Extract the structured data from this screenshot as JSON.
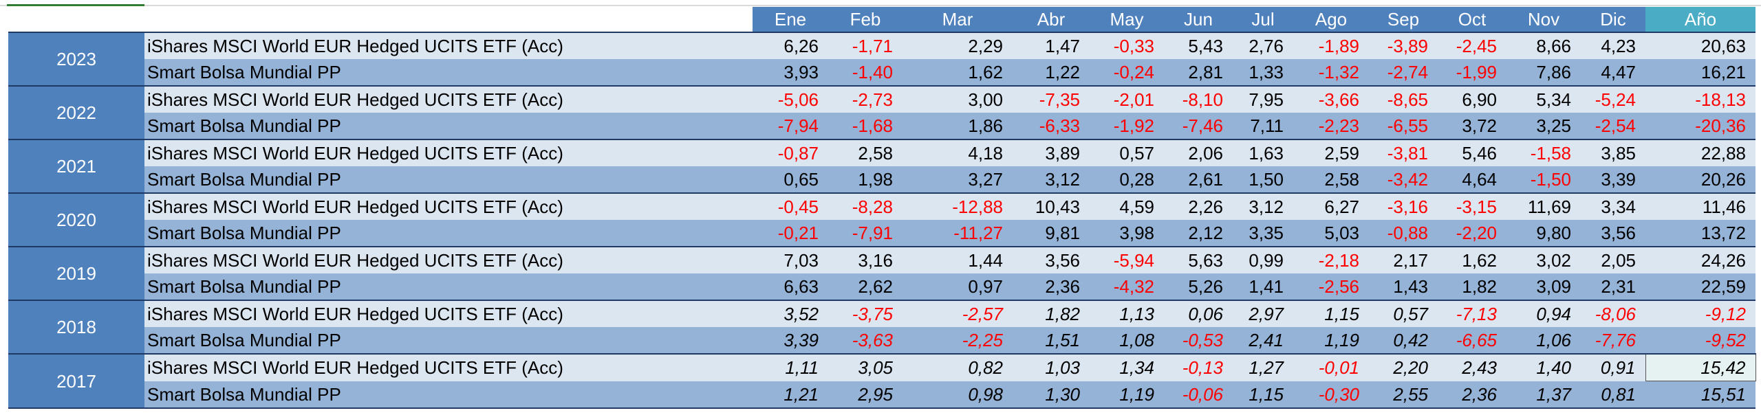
{
  "header": {
    "months": [
      "Ene",
      "Feb",
      "Mar",
      "Abr",
      "May",
      "Jun",
      "Jul",
      "Ago",
      "Sep",
      "Oct",
      "Nov",
      "Dic"
    ],
    "total": "Año"
  },
  "groups": [
    {
      "year": "2023",
      "italic": false,
      "rows": [
        {
          "fund": "iShares MSCI World EUR Hedged UCITS ETF (Acc)",
          "values": [
            "6,26",
            "-1,71",
            "2,29",
            "1,47",
            "-0,33",
            "5,43",
            "2,76",
            "-1,89",
            "-3,89",
            "-2,45",
            "8,66",
            "4,23",
            "20,63"
          ]
        },
        {
          "fund": "Smart Bolsa Mundial  PP",
          "values": [
            "3,93",
            "-1,40",
            "1,62",
            "1,22",
            "-0,24",
            "2,81",
            "1,33",
            "-1,32",
            "-2,74",
            "-1,99",
            "7,86",
            "4,47",
            "16,21"
          ]
        }
      ]
    },
    {
      "year": "2022",
      "italic": false,
      "rows": [
        {
          "fund": "iShares MSCI World EUR Hedged UCITS ETF (Acc)",
          "values": [
            "-5,06",
            "-2,73",
            "3,00",
            "-7,35",
            "-2,01",
            "-8,10",
            "7,95",
            "-3,66",
            "-8,65",
            "6,90",
            "5,34",
            "-5,24",
            "-18,13"
          ]
        },
        {
          "fund": "Smart Bolsa Mundial  PP",
          "values": [
            "-7,94",
            "-1,68",
            "1,86",
            "-6,33",
            "-1,92",
            "-7,46",
            "7,11",
            "-2,23",
            "-6,55",
            "3,72",
            "3,25",
            "-2,54",
            "-20,36"
          ]
        }
      ]
    },
    {
      "year": "2021",
      "italic": false,
      "rows": [
        {
          "fund": "iShares MSCI World EUR Hedged UCITS ETF (Acc)",
          "values": [
            "-0,87",
            "2,58",
            "4,18",
            "3,89",
            "0,57",
            "2,06",
            "1,63",
            "2,59",
            "-3,81",
            "5,46",
            "-1,58",
            "3,85",
            "22,88"
          ]
        },
        {
          "fund": "Smart Bolsa Mundial  PP",
          "values": [
            "0,65",
            "1,98",
            "3,27",
            "3,12",
            "0,28",
            "2,61",
            "1,50",
            "2,58",
            "-3,42",
            "4,64",
            "-1,50",
            "3,39",
            "20,26"
          ]
        }
      ]
    },
    {
      "year": "2020",
      "italic": false,
      "rows": [
        {
          "fund": "iShares MSCI World EUR Hedged UCITS ETF (Acc)",
          "values": [
            "-0,45",
            "-8,28",
            "-12,88",
            "10,43",
            "4,59",
            "2,26",
            "3,12",
            "6,27",
            "-3,16",
            "-3,15",
            "11,69",
            "3,34",
            "11,46"
          ]
        },
        {
          "fund": "Smart Bolsa Mundial  PP",
          "values": [
            "-0,21",
            "-7,91",
            "-11,27",
            "9,81",
            "3,98",
            "2,12",
            "3,35",
            "5,03",
            "-0,88",
            "-2,20",
            "9,80",
            "3,56",
            "13,72"
          ]
        }
      ]
    },
    {
      "year": "2019",
      "italic": false,
      "rows": [
        {
          "fund": "iShares MSCI World EUR Hedged UCITS ETF (Acc)",
          "values": [
            "7,03",
            "3,16",
            "1,44",
            "3,56",
            "-5,94",
            "5,63",
            "0,99",
            "-2,18",
            "2,17",
            "1,62",
            "3,02",
            "2,05",
            "24,26"
          ]
        },
        {
          "fund": "Smart Bolsa Mundial  PP",
          "values": [
            "6,63",
            "2,62",
            "0,97",
            "2,36",
            "-4,32",
            "5,26",
            "1,41",
            "-2,56",
            "1,43",
            "1,82",
            "3,09",
            "2,31",
            "22,59"
          ]
        }
      ]
    },
    {
      "year": "2018",
      "italic": true,
      "rows": [
        {
          "fund": "iShares MSCI World EUR Hedged UCITS ETF (Acc)",
          "values": [
            "3,52",
            "-3,75",
            "-2,57",
            "1,82",
            "1,13",
            "0,06",
            "2,97",
            "1,15",
            "0,57",
            "-7,13",
            "0,94",
            "-8,06",
            "-9,12"
          ]
        },
        {
          "fund": "Smart Bolsa Mundial  PP",
          "values": [
            "3,39",
            "-3,63",
            "-2,25",
            "1,51",
            "1,08",
            "-0,53",
            "2,41",
            "1,19",
            "0,42",
            "-6,65",
            "1,06",
            "-7,76",
            "-9,52"
          ]
        }
      ]
    },
    {
      "year": "2017",
      "italic": true,
      "rows": [
        {
          "fund": "iShares MSCI World EUR Hedged UCITS ETF (Acc)",
          "values": [
            "1,11",
            "3,05",
            "0,82",
            "1,03",
            "1,34",
            "-0,13",
            "1,27",
            "-0,01",
            "2,20",
            "2,43",
            "1,40",
            "0,91",
            "15,42"
          ]
        },
        {
          "fund": "Smart Bolsa Mundial  PP",
          "values": [
            "1,21",
            "2,95",
            "0,98",
            "1,30",
            "1,19",
            "-0,06",
            "1,15",
            "-0,30",
            "2,55",
            "2,36",
            "1,37",
            "0,81",
            "15,51"
          ]
        }
      ]
    }
  ]
}
